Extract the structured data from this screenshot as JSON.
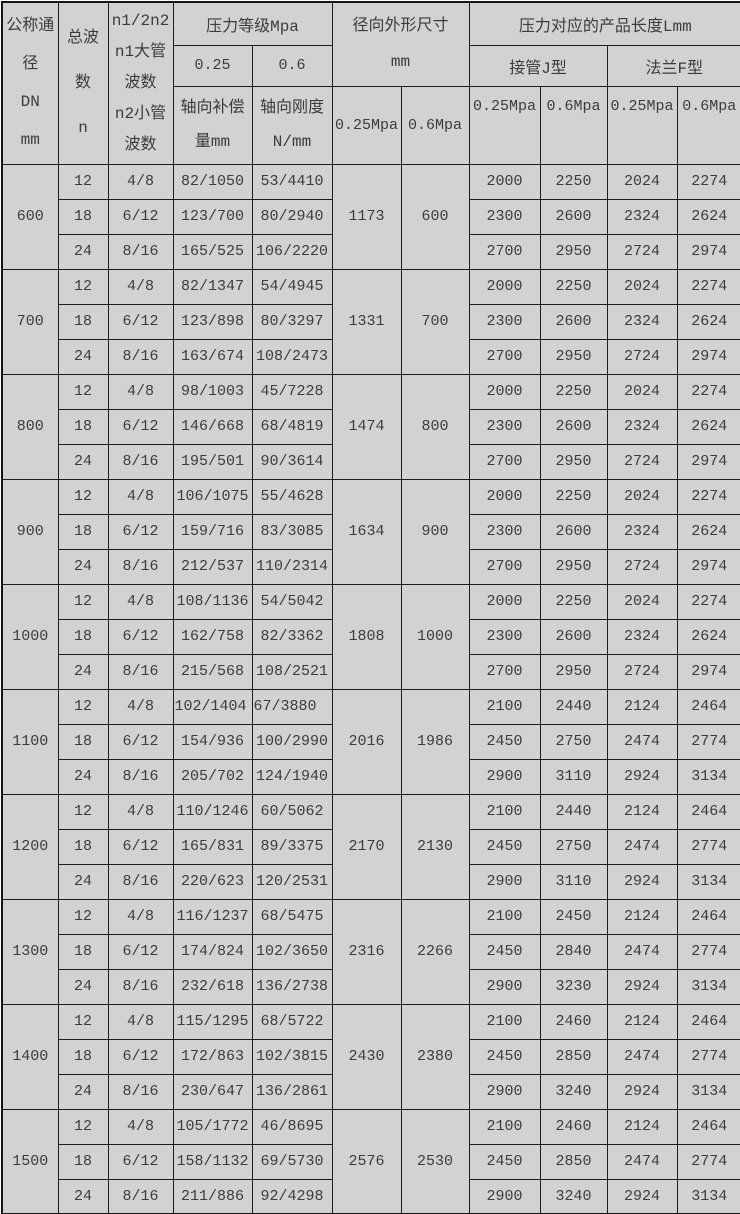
{
  "colors": {
    "table_bg": "#d3d2d0",
    "border": "#1c1c1c",
    "text": "#3c3c3c"
  },
  "header": {
    "col_dn": "公称通\n径\nDN\nmm",
    "col_waves": "总波\n数\nn",
    "col_n1n2": "n1/2n2\nn1大管\n波数\nn2小管\n波数",
    "pressure_group": "压力等级Mpa",
    "pressure_levels": [
      "0.25",
      "0.6"
    ],
    "axial_comp": "轴向补偿\n量mm",
    "axial_stiff": "轴向刚度\nN/mm",
    "radial_group": "径向外形尺寸\nmm",
    "length_group": "压力对应的产品长度Lmm",
    "j_type": "接管J型",
    "f_type": "法兰F型",
    "mpa_labels": [
      "0.25Mpa",
      "0.6Mpa",
      "0.25Mpa",
      "0.6Mpa",
      "0.25Mpa",
      "0.6Mpa"
    ]
  },
  "groups": [
    {
      "dn": "600",
      "radial": [
        "1173",
        "600"
      ],
      "rows": [
        {
          "n": "12",
          "n1n2": "4/8",
          "comp": "82/1050",
          "stiff": "53/4410",
          "lengths": [
            "2000",
            "2250",
            "2024",
            "2274"
          ]
        },
        {
          "n": "18",
          "n1n2": "6/12",
          "comp": "123/700",
          "stiff": "80/2940",
          "lengths": [
            "2300",
            "2600",
            "2324",
            "2624"
          ]
        },
        {
          "n": "24",
          "n1n2": "8/16",
          "comp": "165/525",
          "stiff": "106/2220",
          "lengths": [
            "2700",
            "2950",
            "2724",
            "2974"
          ]
        }
      ]
    },
    {
      "dn": "700",
      "radial": [
        "1331",
        "700"
      ],
      "rows": [
        {
          "n": "12",
          "n1n2": "4/8",
          "comp": "82/1347",
          "stiff": "54/4945",
          "lengths": [
            "2000",
            "2250",
            "2024",
            "2274"
          ]
        },
        {
          "n": "18",
          "n1n2": "6/12",
          "comp": "123/898",
          "stiff": "80/3297",
          "lengths": [
            "2300",
            "2600",
            "2324",
            "2624"
          ]
        },
        {
          "n": "24",
          "n1n2": "8/16",
          "comp": "163/674",
          "stiff": "108/2473",
          "lengths": [
            "2700",
            "2950",
            "2724",
            "2974"
          ]
        }
      ]
    },
    {
      "dn": "800",
      "radial": [
        "1474",
        "800"
      ],
      "rows": [
        {
          "n": "12",
          "n1n2": "4/8",
          "comp": "98/1003",
          "stiff": "45/7228",
          "lengths": [
            "2000",
            "2250",
            "2024",
            "2274"
          ]
        },
        {
          "n": "18",
          "n1n2": "6/12",
          "comp": "146/668",
          "stiff": "68/4819",
          "lengths": [
            "2300",
            "2600",
            "2324",
            "2624"
          ]
        },
        {
          "n": "24",
          "n1n2": "8/16",
          "comp": "195/501",
          "stiff": "90/3614",
          "lengths": [
            "2700",
            "2950",
            "2724",
            "2974"
          ]
        }
      ]
    },
    {
      "dn": "900",
      "radial": [
        "1634",
        "900"
      ],
      "rows": [
        {
          "n": "12",
          "n1n2": "4/8",
          "comp": "106/1075",
          "stiff": "55/4628",
          "lengths": [
            "2000",
            "2250",
            "2024",
            "2274"
          ]
        },
        {
          "n": "18",
          "n1n2": "6/12",
          "comp": "159/716",
          "stiff": "83/3085",
          "lengths": [
            "2300",
            "2600",
            "2324",
            "2624"
          ]
        },
        {
          "n": "24",
          "n1n2": "8/16",
          "comp": "212/537",
          "stiff": "110/2314",
          "lengths": [
            "2700",
            "2950",
            "2724",
            "2974"
          ]
        }
      ]
    },
    {
      "dn": "1000",
      "radial": [
        "1808",
        "1000"
      ],
      "rows": [
        {
          "n": "12",
          "n1n2": "4/8",
          "comp": "108/1136",
          "stiff": "54/5042",
          "lengths": [
            "2000",
            "2250",
            "2024",
            "2274"
          ]
        },
        {
          "n": "18",
          "n1n2": "6/12",
          "comp": "162/758",
          "stiff": "82/3362",
          "lengths": [
            "2300",
            "2600",
            "2324",
            "2624"
          ]
        },
        {
          "n": "24",
          "n1n2": "8/16",
          "comp": "215/568",
          "stiff": "108/2521",
          "lengths": [
            "2700",
            "2950",
            "2724",
            "2974"
          ]
        }
      ]
    },
    {
      "dn": "1100",
      "radial": [
        "2016",
        "1986"
      ],
      "rows": [
        {
          "n": "12",
          "n1n2": "4/8",
          "comp": "102/1404",
          "stiff": "67/3880",
          "flush_left": true,
          "lengths": [
            "2100",
            "2440",
            "2124",
            "2464"
          ]
        },
        {
          "n": "18",
          "n1n2": "6/12",
          "comp": "154/936",
          "stiff": "100/2990",
          "lengths": [
            "2450",
            "2750",
            "2474",
            "2774"
          ]
        },
        {
          "n": "24",
          "n1n2": "8/16",
          "comp": "205/702",
          "stiff": "124/1940",
          "lengths": [
            "2900",
            "3110",
            "2924",
            "3134"
          ]
        }
      ]
    },
    {
      "dn": "1200",
      "radial": [
        "2170",
        "2130"
      ],
      "rows": [
        {
          "n": "12",
          "n1n2": "4/8",
          "comp": "110/1246",
          "stiff": "60/5062",
          "lengths": [
            "2100",
            "2440",
            "2124",
            "2464"
          ]
        },
        {
          "n": "18",
          "n1n2": "6/12",
          "comp": "165/831",
          "stiff": "89/3375",
          "lengths": [
            "2450",
            "2750",
            "2474",
            "2774"
          ]
        },
        {
          "n": "24",
          "n1n2": "8/16",
          "comp": "220/623",
          "stiff": "120/2531",
          "lengths": [
            "2900",
            "3110",
            "2924",
            "3134"
          ]
        }
      ]
    },
    {
      "dn": "1300",
      "radial": [
        "2316",
        "2266"
      ],
      "rows": [
        {
          "n": "12",
          "n1n2": "4/8",
          "comp": "116/1237",
          "stiff": "68/5475",
          "lengths": [
            "2100",
            "2450",
            "2124",
            "2464"
          ]
        },
        {
          "n": "18",
          "n1n2": "6/12",
          "comp": "174/824",
          "stiff": "102/3650",
          "lengths": [
            "2450",
            "2840",
            "2474",
            "2774"
          ]
        },
        {
          "n": "24",
          "n1n2": "8/16",
          "comp": "232/618",
          "stiff": "136/2738",
          "lengths": [
            "2900",
            "3230",
            "2924",
            "3134"
          ]
        }
      ]
    },
    {
      "dn": "1400",
      "radial": [
        "2430",
        "2380"
      ],
      "rows": [
        {
          "n": "12",
          "n1n2": "4/8",
          "comp": "115/1295",
          "stiff": "68/5722",
          "lengths": [
            "2100",
            "2460",
            "2124",
            "2464"
          ]
        },
        {
          "n": "18",
          "n1n2": "6/12",
          "comp": "172/863",
          "stiff": "102/3815",
          "lengths": [
            "2450",
            "2850",
            "2474",
            "2774"
          ]
        },
        {
          "n": "24",
          "n1n2": "8/16",
          "comp": "230/647",
          "stiff": "136/2861",
          "lengths": [
            "2900",
            "3240",
            "2924",
            "3134"
          ]
        }
      ]
    },
    {
      "dn": "1500",
      "radial": [
        "2576",
        "2530"
      ],
      "rows": [
        {
          "n": "12",
          "n1n2": "4/8",
          "comp": "105/1772",
          "stiff": "46/8695",
          "lengths": [
            "2100",
            "2460",
            "2124",
            "2464"
          ]
        },
        {
          "n": "18",
          "n1n2": "6/12",
          "comp": "158/1132",
          "stiff": "69/5730",
          "lengths": [
            "2450",
            "2850",
            "2474",
            "2774"
          ]
        },
        {
          "n": "24",
          "n1n2": "8/16",
          "comp": "211/886",
          "stiff": "92/4298",
          "lengths": [
            "2900",
            "3240",
            "2924",
            "3134"
          ]
        }
      ]
    }
  ]
}
